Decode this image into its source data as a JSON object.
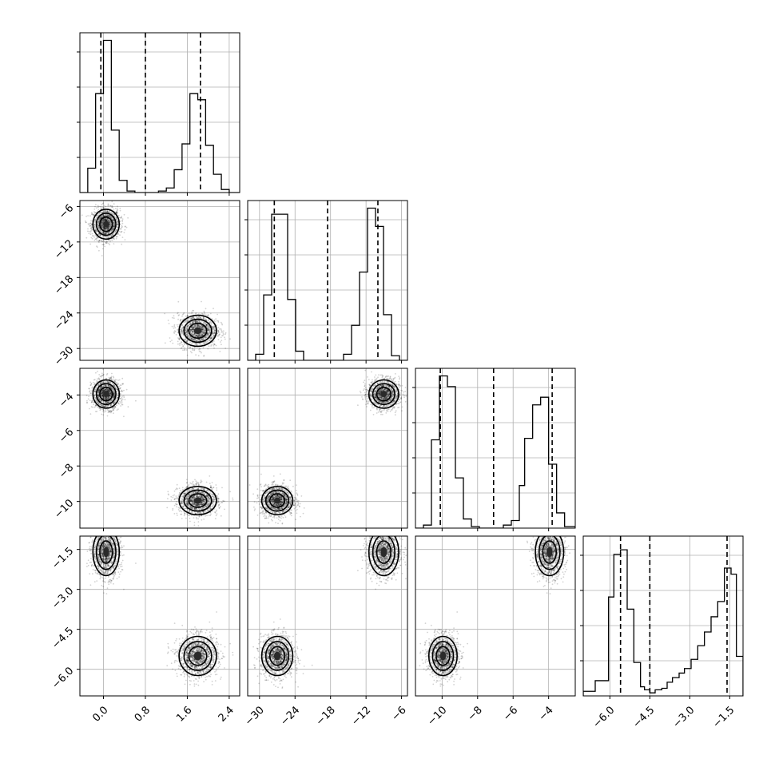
{
  "chart_data": {
    "type": "corner",
    "parameters": [
      {
        "range": [
          -0.45,
          2.6
        ],
        "ticks": [
          {
            "v": 0.0,
            "label": "0.0"
          },
          {
            "v": 0.8,
            "label": "0.8"
          },
          {
            "v": 1.6,
            "label": "1.6"
          },
          {
            "v": 2.4,
            "label": "2.4"
          }
        ],
        "quantiles": [
          -0.05,
          0.8,
          1.85
        ],
        "histogram": {
          "edges": [
            -0.45,
            -0.3,
            -0.15,
            0.0,
            0.15,
            0.3,
            0.45,
            0.6,
            0.75,
            0.9,
            1.05,
            1.2,
            1.35,
            1.5,
            1.65,
            1.8,
            1.95,
            2.1,
            2.25,
            2.4,
            2.6
          ],
          "counts": [
            0,
            0.16,
            0.65,
            1.0,
            0.41,
            0.08,
            0.01,
            0,
            0,
            0,
            0.01,
            0.03,
            0.15,
            0.32,
            0.65,
            0.61,
            0.31,
            0.12,
            0.02,
            0
          ]
        }
      },
      {
        "range": [
          -32,
          -5
        ],
        "ticks": [
          {
            "v": -30,
            "label": "−30"
          },
          {
            "v": -24,
            "label": "−24"
          },
          {
            "v": -18,
            "label": "−18"
          },
          {
            "v": -12,
            "label": "−12"
          },
          {
            "v": -6,
            "label": "−6"
          }
        ],
        "quantiles": [
          -27.5,
          -18.5,
          -10
        ],
        "histogram": {
          "edges": [
            -32,
            -30.65,
            -29.3,
            -27.95,
            -26.6,
            -25.25,
            -23.9,
            -22.55,
            -21.2,
            -19.85,
            -18.5,
            -17.15,
            -15.8,
            -14.45,
            -13.1,
            -11.75,
            -10.4,
            -9.05,
            -7.7,
            -6.35,
            -5
          ],
          "counts": [
            0,
            0.04,
            0.43,
            0.96,
            0.96,
            0.4,
            0.06,
            0,
            0,
            0,
            0,
            0,
            0.04,
            0.23,
            0.58,
            1.0,
            0.88,
            0.3,
            0.03,
            0
          ]
        }
      },
      {
        "range": [
          -11.5,
          -2.5
        ],
        "ticks": [
          {
            "v": -10,
            "label": "−10"
          },
          {
            "v": -8,
            "label": "−8"
          },
          {
            "v": -6,
            "label": "−6"
          },
          {
            "v": -4,
            "label": "−4"
          }
        ],
        "quantiles": [
          -10.1,
          -7.1,
          -3.8
        ],
        "histogram": {
          "edges": [
            -11.5,
            -11.05,
            -10.6,
            -10.15,
            -9.7,
            -9.25,
            -8.8,
            -8.35,
            -7.9,
            -7.45,
            -7.0,
            -6.55,
            -6.1,
            -5.65,
            -5.35,
            -4.9,
            -4.45,
            -4.0,
            -3.55,
            -3.1,
            -2.5
          ],
          "counts": [
            0,
            0.02,
            0.58,
            1.0,
            0.93,
            0.33,
            0.06,
            0.01,
            0,
            0,
            0,
            0.02,
            0.05,
            0.28,
            0.59,
            0.81,
            0.86,
            0.42,
            0.1,
            0.01
          ]
        }
      },
      {
        "range": [
          -7.0,
          -1.0
        ],
        "ticks": [
          {
            "v": -6.0,
            "label": "−6.0"
          },
          {
            "v": -4.5,
            "label": "−4.5"
          },
          {
            "v": -3.0,
            "label": "−3.0"
          },
          {
            "v": -1.5,
            "label": "−1.5"
          }
        ],
        "quantiles": [
          -5.6,
          -4.5,
          -1.6
        ],
        "histogram": {
          "edges": [
            -7.0,
            -6.55,
            -6.05,
            -5.85,
            -5.6,
            -5.35,
            -5.1,
            -4.85,
            -4.7,
            -4.5,
            -4.3,
            -4.05,
            -3.85,
            -3.65,
            -3.4,
            -3.2,
            -2.95,
            -2.7,
            -2.45,
            -2.2,
            -1.95,
            -1.7,
            -1.45,
            -1.25,
            -1.0
          ],
          "counts": [
            0.03,
            0.1,
            0.65,
            0.93,
            0.96,
            0.57,
            0.22,
            0.06,
            0.04,
            0.02,
            0.04,
            0.05,
            0.09,
            0.12,
            0.15,
            0.18,
            0.24,
            0.33,
            0.42,
            0.52,
            0.62,
            0.84,
            0.8,
            0.26
          ]
        }
      }
    ],
    "clusters": [
      {
        "means": [
          0.05,
          -9.0,
          -3.95,
          -1.6
        ],
        "sigmas": [
          0.12,
          1.2,
          0.38,
          0.42
        ]
      },
      {
        "means": [
          1.8,
          -27.0,
          -9.95,
          -5.5
        ],
        "sigmas": [
          0.17,
          1.25,
          0.38,
          0.35
        ]
      }
    ]
  }
}
